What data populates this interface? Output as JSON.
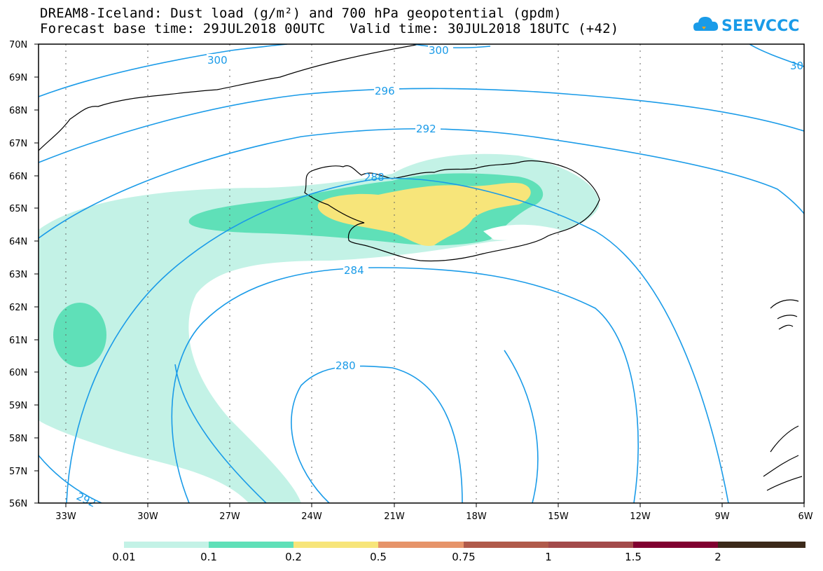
{
  "header": {
    "title_line1": "DREAM8-Iceland: Dust load (g/m²) and 700 hPa geopotential (gpdm)",
    "title_line2": "Forecast base time: 29JUL2018 00UTC   Valid time: 30JUL2018 18UTC (+42)",
    "logo_text": "SEEVCCC"
  },
  "map": {
    "lat_labels": [
      "70N",
      "69N",
      "68N",
      "67N",
      "66N",
      "65N",
      "64N",
      "63N",
      "62N",
      "61N",
      "60N",
      "59N",
      "58N",
      "57N",
      "56N"
    ],
    "lon_labels": [
      "33W",
      "30W",
      "27W",
      "24W",
      "21W",
      "18W",
      "15W",
      "12W",
      "9W",
      "6W"
    ],
    "contour_labels": [
      "300",
      "300",
      "30",
      "296",
      "292",
      "288",
      "284",
      "280",
      "292"
    ]
  },
  "colorbar": {
    "colors": [
      "#c3f2e6",
      "#5fe0b8",
      "#f7e57a",
      "#e6946a",
      "#b05a4a",
      "#a34a4a",
      "#800030",
      "#3c2a1a",
      "#9a72a8"
    ],
    "labels": [
      "0.01",
      "0.1",
      "0.2",
      "0.5",
      "0.75",
      "1",
      "1.5",
      "2"
    ]
  },
  "colors": {
    "contour": "#1a9be8",
    "dust_low": "#c3f2e6",
    "dust_mid": "#5fe0b8",
    "dust_high": "#f7e57a"
  }
}
